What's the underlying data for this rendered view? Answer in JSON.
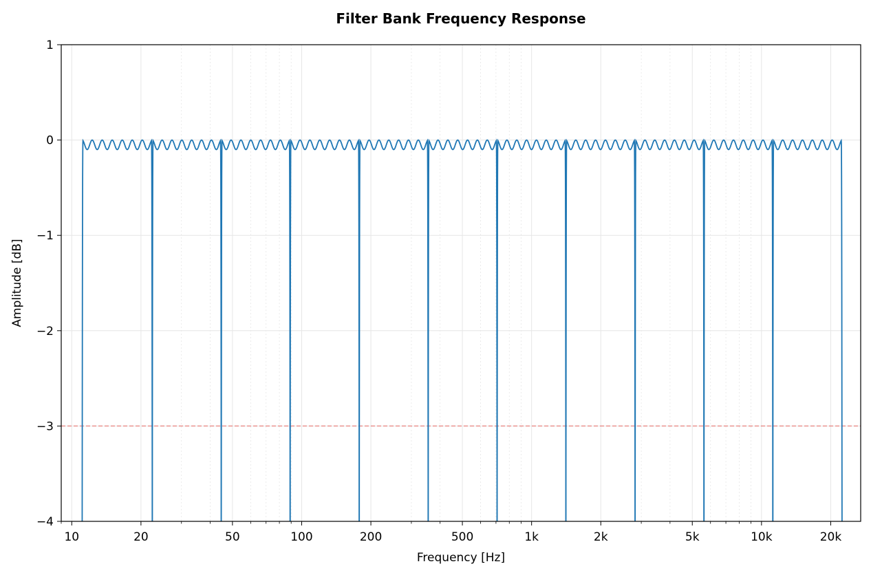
{
  "chart_data": {
    "type": "line",
    "title": "Filter Bank Frequency Response",
    "xlabel": "Frequency [Hz]",
    "ylabel": "Amplitude [dB]",
    "x_scale": "log",
    "xlim": [
      9,
      27000
    ],
    "ylim": [
      -4,
      1
    ],
    "grid": true,
    "x_ticks": [
      {
        "value": 10,
        "label": "10"
      },
      {
        "value": 20,
        "label": "20"
      },
      {
        "value": 50,
        "label": "50"
      },
      {
        "value": 100,
        "label": "100"
      },
      {
        "value": 200,
        "label": "200"
      },
      {
        "value": 500,
        "label": "500"
      },
      {
        "value": 1000,
        "label": "1k"
      },
      {
        "value": 2000,
        "label": "2k"
      },
      {
        "value": 5000,
        "label": "5k"
      },
      {
        "value": 10000,
        "label": "10k"
      },
      {
        "value": 20000,
        "label": "20k"
      }
    ],
    "y_ticks": [
      {
        "value": 1,
        "label": "1"
      },
      {
        "value": 0,
        "label": "0"
      },
      {
        "value": -1,
        "label": "−1"
      },
      {
        "value": -2,
        "label": "−2"
      },
      {
        "value": -3,
        "label": "−3"
      },
      {
        "value": -4,
        "label": "−4"
      }
    ],
    "reference_line": {
      "y": -3,
      "color": "#e8827f",
      "style": "dashed"
    },
    "series": [
      {
        "color": "#1f77b4",
        "band_edges_hz": [
          11.1,
          22.4,
          44.7,
          89.1,
          178,
          355,
          708,
          1410,
          2820,
          5620,
          11200,
          22400
        ],
        "passband_ripple_db": 0.1,
        "ripple_cycles_per_band": 7
      }
    ]
  },
  "colors": {
    "line": "#1f77b4",
    "reference": "#e8827f",
    "grid": "#e6e6e6",
    "axes": "#000000"
  }
}
